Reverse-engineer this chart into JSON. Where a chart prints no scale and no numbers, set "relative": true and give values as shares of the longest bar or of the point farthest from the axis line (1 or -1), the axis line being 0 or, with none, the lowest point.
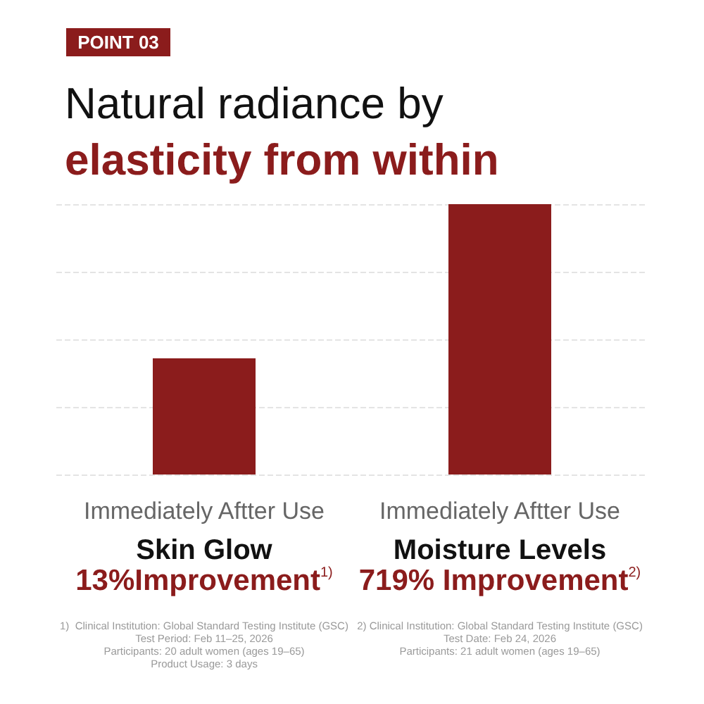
{
  "chart_data": {
    "type": "bar",
    "subtitle": "POINT 03",
    "title": "Natural radiance by\nelasticity from within",
    "categories": [
      "Immediately Aftter Use\nSkin Glow",
      "Immediately Aftter Use\nMoisture Levels"
    ],
    "values": [
      0.43,
      1
    ],
    "color": "#8b1c1c",
    "relative": true,
    "grid": "y",
    "annotations": [
      "13%Improvement$^{1)}$",
      "719% Improvement$^{2)}$",
      "1)  Clinical Institution: Global Standard Testing Institute (GSC)\nTest Period: Feb 11–25, 2026\nParticipants: 20 adult women (ages 19–65)\nProduct Usage: 3 days",
      "2) Clinical Institution: Global Standard Testing Institute (GSC)\nTest Date: Feb 24, 2026\nParticipants: 21 adult women (ages 19–65)"
    ]
  }
}
